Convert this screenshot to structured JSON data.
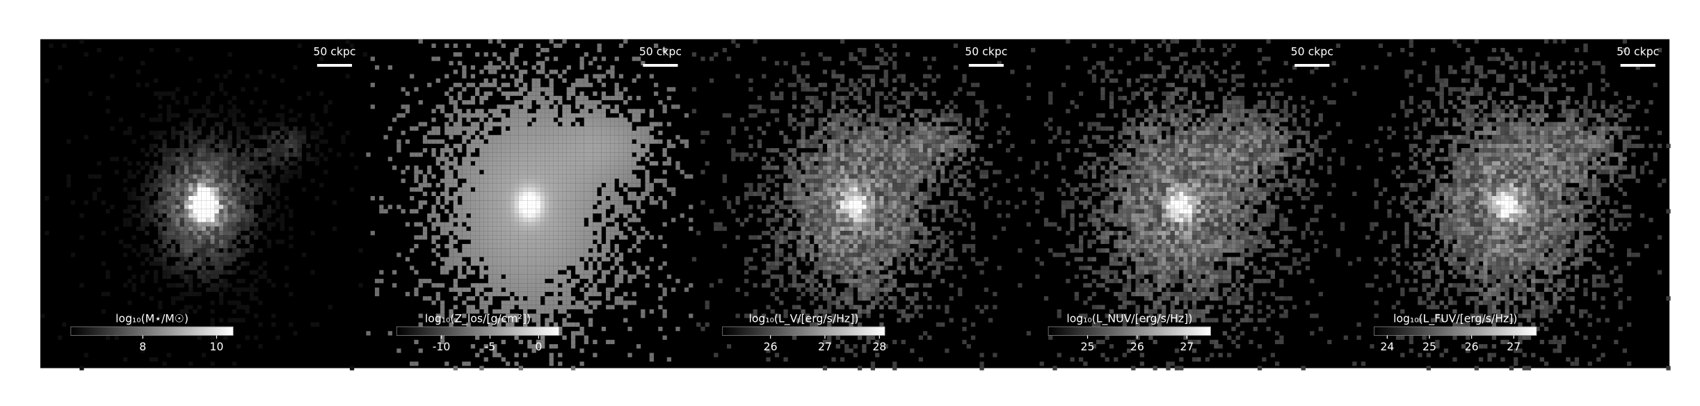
{
  "chart_data": [
    {
      "type": "colorbar-map",
      "label": "log₁₀(M⋆/M☉)",
      "scalebar": "50 ckpc",
      "clim": [
        6.05,
        10.45
      ],
      "ticks": [
        8,
        10
      ]
    },
    {
      "type": "colorbar-map",
      "label": "log₁₀(Z_los/[g/cm²])",
      "scalebar": "50 ckpc",
      "clim": [
        -14.6,
        2.1
      ],
      "ticks": [
        -10,
        -5,
        0
      ]
    },
    {
      "type": "colorbar-map",
      "label": "log₁₀(L_V/[erg/s/Hz])",
      "scalebar": "50 ckpc",
      "clim": [
        25.12,
        28.1
      ],
      "ticks": [
        26,
        27,
        28
      ]
    },
    {
      "type": "colorbar-map",
      "label": "log₁₀(L_NUV/[erg/s/Hz])",
      "scalebar": "50 ckpc",
      "clim": [
        24.21,
        27.48
      ],
      "ticks": [
        25,
        26,
        27
      ]
    },
    {
      "type": "colorbar-map",
      "label": "log₁₀(L_FUV/[erg/s/Hz])",
      "scalebar": "50 ckpc",
      "clim": [
        23.69,
        27.54
      ],
      "ticks": [
        24,
        25,
        26,
        27
      ]
    }
  ]
}
